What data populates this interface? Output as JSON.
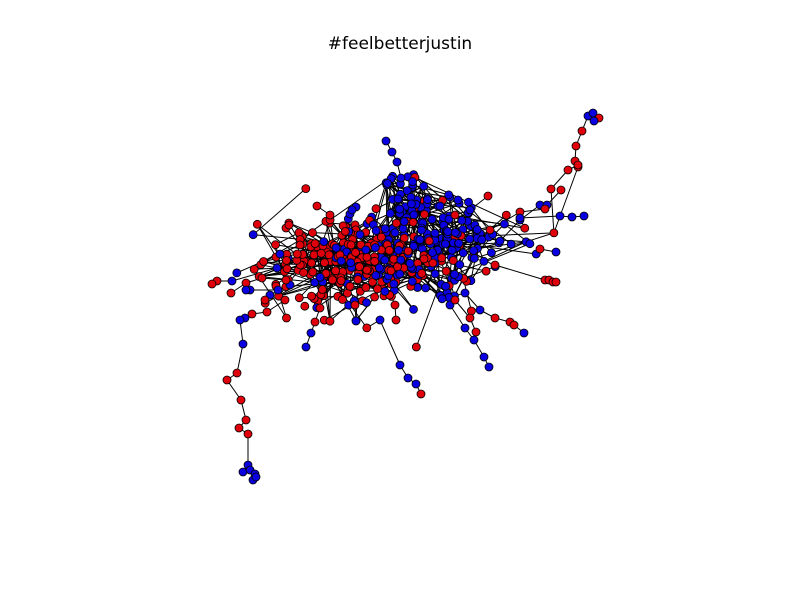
{
  "figure": {
    "title": "#feelbetterjustin"
  },
  "graph": {
    "type": "network",
    "node_colors": {
      "group_a": "#e0000b",
      "group_b": "#0a00e0"
    },
    "edge_color": "#000000",
    "node_outline_color": "#000000"
  }
}
